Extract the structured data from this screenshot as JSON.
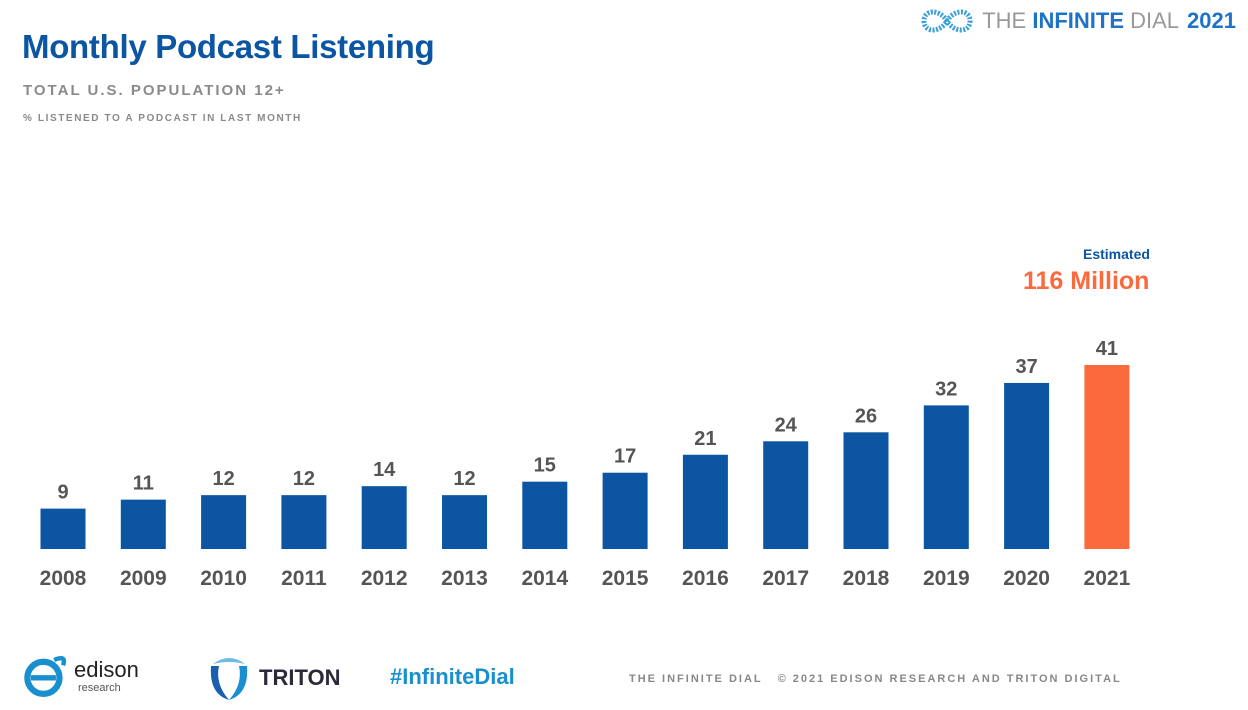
{
  "header": {
    "title": "Monthly Podcast Listening",
    "subtitle": "TOTAL U.S. POPULATION 12+",
    "subtitle2": "% LISTENED TO A PODCAST IN LAST MONTH",
    "brand_prefix": "THE",
    "brand_bold": "INFINITE",
    "brand_suffix": "DIAL",
    "brand_year": "2021"
  },
  "annotation": {
    "label": "Estimated",
    "value": "116 Million"
  },
  "chart_data": {
    "type": "bar",
    "title": "Monthly Podcast Listening",
    "categories": [
      "2008",
      "2009",
      "2010",
      "2011",
      "2012",
      "2013",
      "2014",
      "2015",
      "2016",
      "2017",
      "2018",
      "2019",
      "2020",
      "2021"
    ],
    "values": [
      9,
      11,
      12,
      12,
      14,
      12,
      15,
      17,
      21,
      24,
      26,
      32,
      37,
      41
    ],
    "ylim": [
      0,
      45
    ],
    "grid": false,
    "colors": {
      "default": "#0b55a3",
      "highlight": "#fb6a3c"
    },
    "highlight_category": "2021"
  },
  "footer": {
    "edison_word": "edison",
    "edison_sub": "research",
    "triton_word": "TRITON",
    "hashtag": "#InfiniteDial",
    "copyright": "THE INFINITE DIAL   © 2021 EDISON RESEARCH AND TRITON DIGITAL"
  }
}
